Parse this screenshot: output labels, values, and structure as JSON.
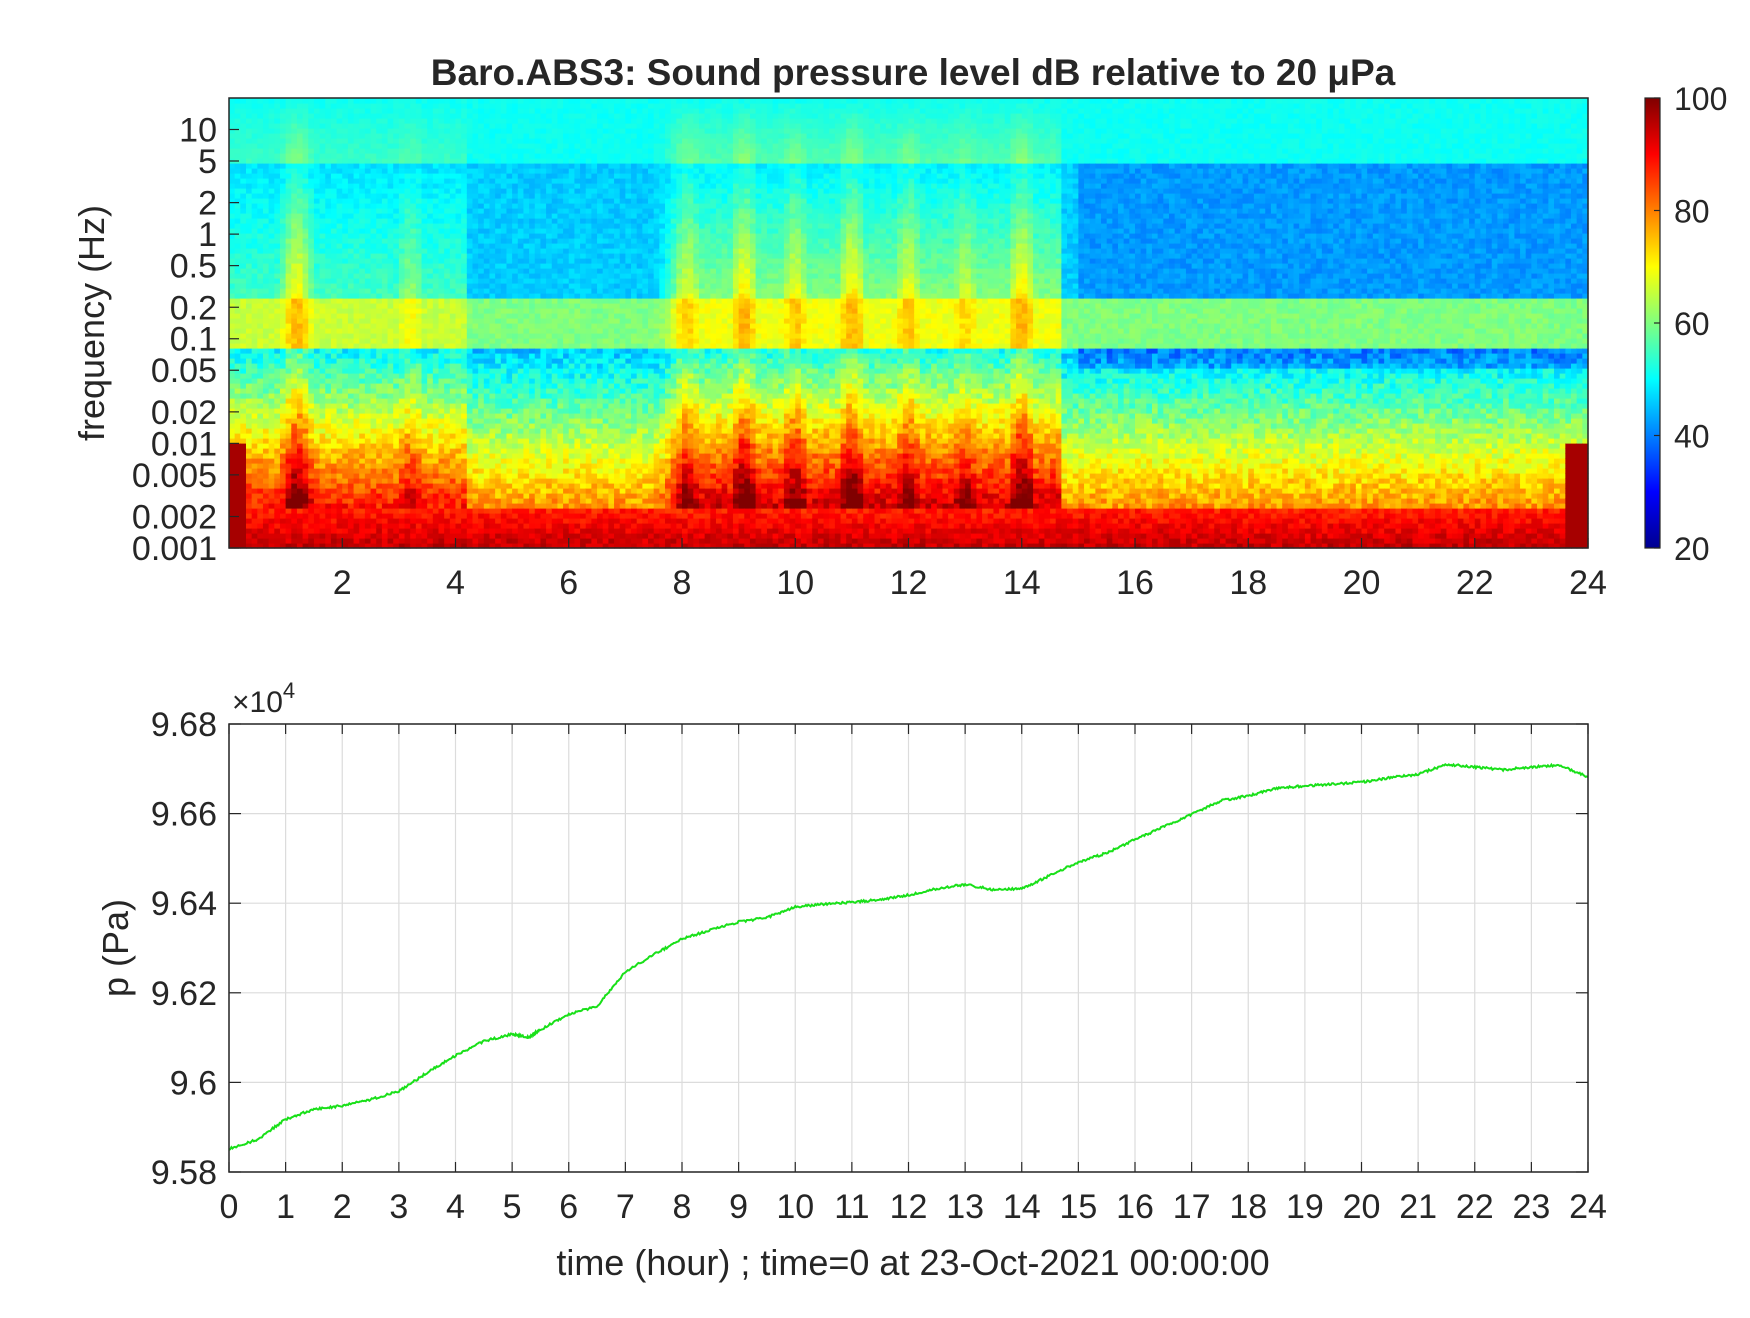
{
  "colors": {
    "line": "#19e019",
    "axis": "#262626",
    "grid": "#dcdcdc",
    "background": "#ffffff"
  },
  "colormap": "jet",
  "chart_data": [
    {
      "type": "heatmap",
      "title": "Baro.ABS3: Sound pressure level dB relative to 20 μPa",
      "ylabel": "frequency (Hz)",
      "xlabel": "",
      "xlim": [
        0,
        24
      ],
      "x_ticks": [
        "2",
        "4",
        "6",
        "8",
        "10",
        "12",
        "14",
        "16",
        "18",
        "20",
        "22",
        "24"
      ],
      "y_scale": "log",
      "ylim": [
        0.001,
        20
      ],
      "y_ticks": [
        "0.001",
        "0.002",
        "0.005",
        "0.01",
        "0.02",
        "0.05",
        "0.1",
        "0.2",
        "0.5",
        "1",
        "2",
        "5",
        "10"
      ],
      "colorbar": {
        "label": "",
        "range": [
          20,
          100
        ],
        "ticks": [
          "20",
          "40",
          "60",
          "80",
          "100"
        ]
      },
      "events": [
        {
          "t": 1.2,
          "strength": 0.95
        },
        {
          "t": 3.2,
          "strength": 0.6
        },
        {
          "t": 8.1,
          "strength": 0.85
        },
        {
          "t": 9.1,
          "strength": 1.0
        },
        {
          "t": 10.0,
          "strength": 0.9
        },
        {
          "t": 11.0,
          "strength": 1.0
        },
        {
          "t": 12.0,
          "strength": 0.9
        },
        {
          "t": 13.0,
          "strength": 0.8
        },
        {
          "t": 14.0,
          "strength": 1.0
        }
      ]
    },
    {
      "type": "line",
      "title": "",
      "xlabel": "time (hour) ; time=0 at 23-Oct-2021 00:00:00",
      "ylabel": "p (Pa)",
      "exponent_label": "×10",
      "exponent_power": "4",
      "xlim": [
        0,
        24
      ],
      "ylim": [
        95800,
        96800
      ],
      "x_ticks": [
        "0",
        "1",
        "2",
        "3",
        "4",
        "5",
        "6",
        "7",
        "8",
        "9",
        "10",
        "11",
        "12",
        "13",
        "14",
        "15",
        "16",
        "17",
        "18",
        "19",
        "20",
        "21",
        "22",
        "23",
        "24"
      ],
      "y_ticks": [
        "9.58",
        "9.6",
        "9.62",
        "9.64",
        "9.66",
        "9.68"
      ],
      "grid": true,
      "series": [
        {
          "x": [
            0,
            0.5,
            1,
            1.5,
            2,
            2.5,
            3,
            3.5,
            4,
            4.5,
            5,
            5.3,
            5.5,
            6,
            6.5,
            7,
            7.5,
            8,
            8.5,
            9,
            9.5,
            10,
            10.5,
            11,
            11.5,
            12,
            12.5,
            13,
            13.5,
            14,
            14.5,
            15,
            15.5,
            16,
            16.5,
            17,
            17.5,
            18,
            18.5,
            19,
            19.5,
            20,
            20.5,
            21,
            21.5,
            22,
            22.5,
            23,
            23.5,
            24
          ],
          "y": [
            95852,
            95872,
            95918,
            95940,
            95948,
            95962,
            95980,
            96022,
            96060,
            96092,
            96108,
            96100,
            96118,
            96152,
            96170,
            96247,
            96285,
            96320,
            96340,
            96358,
            96368,
            96392,
            96398,
            96402,
            96408,
            96418,
            96432,
            96442,
            96430,
            96432,
            96462,
            96492,
            96512,
            96542,
            96570,
            96598,
            96628,
            96640,
            96656,
            96662,
            96666,
            96670,
            96680,
            96688,
            96710,
            96704,
            96698,
            96704,
            96708,
            96682
          ]
        }
      ]
    }
  ]
}
